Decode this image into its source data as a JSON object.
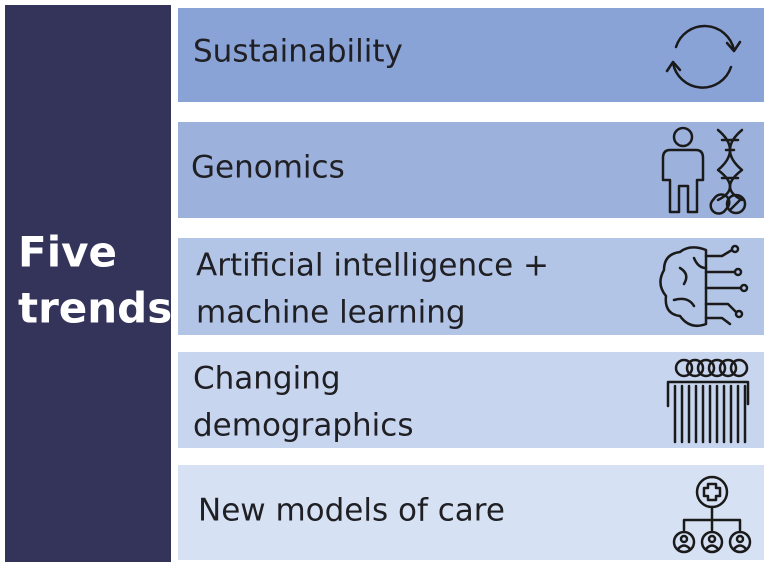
{
  "sidebar": {
    "title_lines": [
      "Five",
      "trends"
    ]
  },
  "trends": [
    {
      "lines": [
        "Sustainability"
      ]
    },
    {
      "lines": [
        "Genomics"
      ]
    },
    {
      "lines": [
        "Artificial intelligence +",
        "machine learning"
      ]
    },
    {
      "lines": [
        "Changing",
        "demographics"
      ]
    },
    {
      "lines": [
        "New models of care"
      ]
    }
  ]
}
